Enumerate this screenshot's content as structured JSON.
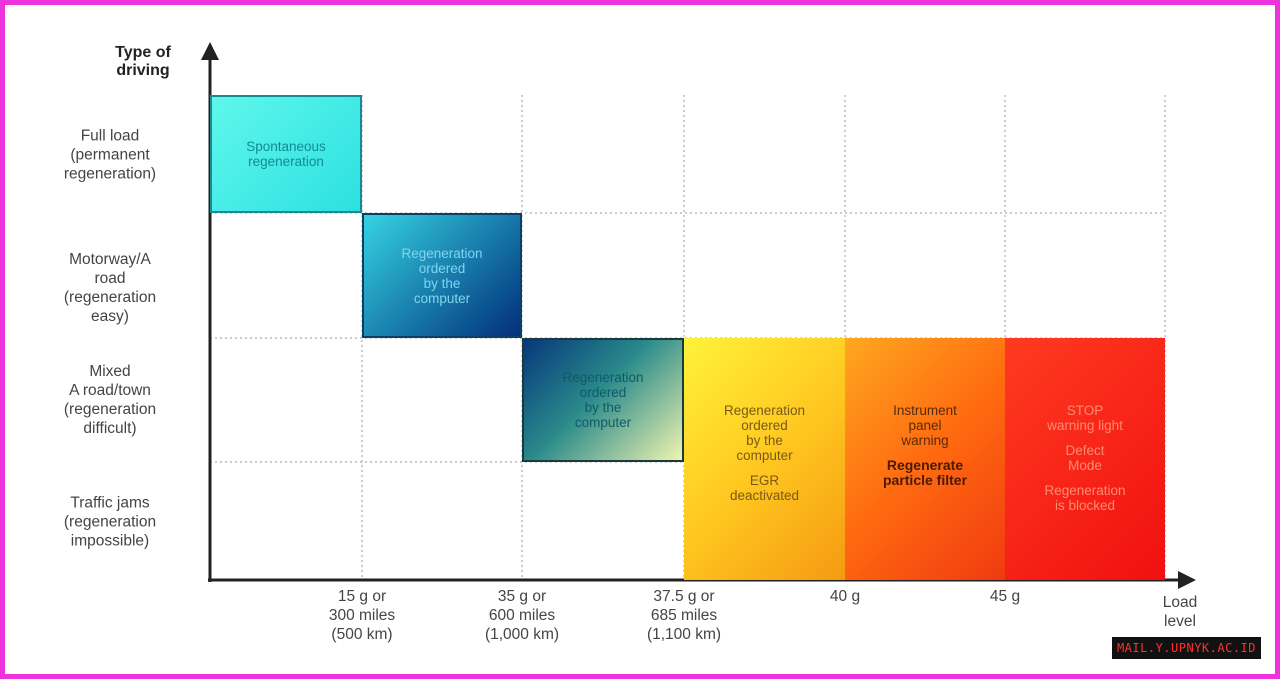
{
  "y_axis": {
    "title": [
      "Type of",
      "driving"
    ],
    "rows": [
      [
        "Full load",
        "(permanent",
        "regeneration)"
      ],
      [
        "Motorway/A",
        "road",
        "(regeneration",
        "easy)"
      ],
      [
        "Mixed",
        "A road/town",
        "(regeneration",
        "difficult)"
      ],
      [
        "Traffic jams",
        "(regeneration",
        "impossible)"
      ]
    ]
  },
  "x_axis": {
    "title": [
      "Load",
      "level"
    ],
    "ticks": [
      [
        "15 g or",
        "300 miles",
        "(500 km)"
      ],
      [
        "35 g or",
        "600 miles",
        "(1,000 km)"
      ],
      [
        "37.5 g or",
        "685 miles",
        "(1,100 km)"
      ],
      [
        "40 g"
      ],
      [
        "45 g"
      ]
    ]
  },
  "boxes": [
    {
      "paragraphs": [
        {
          "lines": [
            "Spontaneous",
            "regeneration"
          ]
        }
      ]
    },
    {
      "paragraphs": [
        {
          "lines": [
            "Regeneration",
            "ordered",
            "by the",
            "computer"
          ]
        }
      ]
    },
    {
      "paragraphs": [
        {
          "lines": [
            "Regeneration",
            "ordered",
            "by the",
            "computer"
          ]
        }
      ]
    },
    {
      "paragraphs": [
        {
          "lines": [
            "Regeneration",
            "ordered",
            "by the",
            "computer"
          ]
        },
        {
          "lines": [
            "EGR",
            "deactivated"
          ]
        }
      ]
    },
    {
      "paragraphs": [
        {
          "lines": [
            "Instrument",
            "panel",
            "warning"
          ]
        },
        {
          "lines": [
            "Regenerate",
            "particle filter"
          ],
          "bold": true
        }
      ]
    },
    {
      "paragraphs": [
        {
          "lines": [
            "STOP",
            "warning light"
          ]
        },
        {
          "lines": [
            "Defect",
            "Mode"
          ]
        },
        {
          "lines": [
            "Regeneration",
            "is blocked"
          ]
        }
      ]
    }
  ],
  "watermark": "MAIL.Y.UPNYK.AC.ID"
}
